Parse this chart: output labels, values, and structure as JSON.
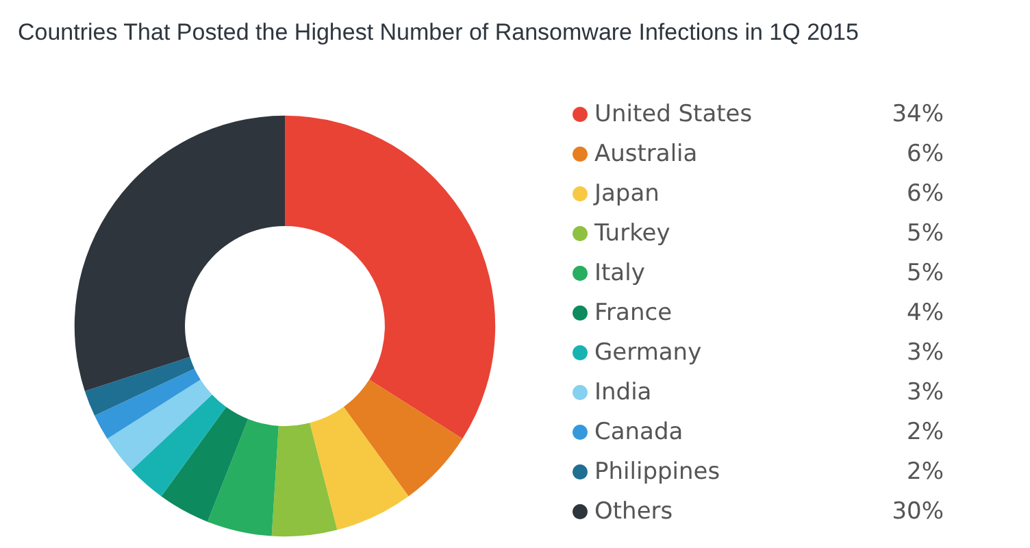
{
  "chart_data": {
    "type": "donut",
    "title": "Countries That Posted the Highest Number of Ransomware Infections in 1Q 2015",
    "categories": [
      "United States",
      "Australia",
      "Japan",
      "Turkey",
      "Italy",
      "France",
      "Germany",
      "India",
      "Canada",
      "Philippines",
      "Others"
    ],
    "values": [
      34,
      6,
      6,
      5,
      5,
      4,
      3,
      3,
      2,
      2,
      30
    ],
    "colors": [
      "#e94335",
      "#e67e22",
      "#f7c942",
      "#8dc13f",
      "#27ae60",
      "#0e8a5f",
      "#17b3b3",
      "#86d0f0",
      "#3498db",
      "#1f6f93",
      "#2e353d"
    ],
    "value_labels": [
      "34%",
      "6%",
      "6%",
      "5%",
      "5%",
      "4%",
      "3%",
      "3%",
      "2%",
      "2%",
      "30%"
    ],
    "legend": "right"
  }
}
